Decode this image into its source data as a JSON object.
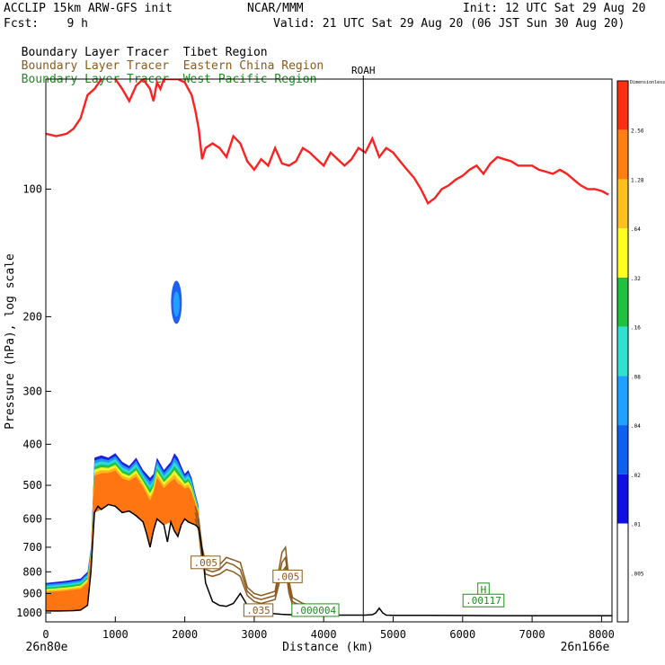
{
  "header": {
    "model": "ACCLIP 15km ARW-GFS init",
    "center": "NCAR/MMM",
    "init": "Init: 12 UTC Sat 29 Aug 20",
    "fcst": "Fcst:    9 h",
    "valid": "Valid: 21 UTC Sat 29 Aug 20 (06 JST Sun 30 Aug 20)"
  },
  "legend": [
    {
      "label": "Boundary Layer Tracer",
      "region": "Tibet Region",
      "color": "#000000"
    },
    {
      "label": "Boundary Layer Tracer",
      "region": "Eastern China Region",
      "color": "#8b5a1e"
    },
    {
      "label": "Boundary Layer Tracer",
      "region": "West Pacific Region",
      "color": "#1e8c1e"
    }
  ],
  "colorbar": {
    "title": "Dimensionless",
    "levels": [
      ".005",
      ".01",
      ".02",
      ".04",
      ".08",
      ".16",
      ".32",
      ".64",
      "1.28",
      "2.56"
    ],
    "colors": [
      "#ffffff",
      "#ffffff",
      "#1010e0",
      "#1060f0",
      "#20a0ff",
      "#30e0d0",
      "#20c040",
      "#ffff20",
      "#ffc020",
      "#ff8010",
      "#ff3010"
    ]
  },
  "chart_data": {
    "type": "area",
    "ylabel": "Pressure (hPa), log scale",
    "xlabel": "Distance (km)",
    "y_scale": "log",
    "ylim": [
      1050,
      55
    ],
    "xlim": [
      0,
      8150
    ],
    "x_ticks": [
      "0",
      "1000",
      "2000",
      "3000",
      "4000",
      "5000",
      "6000",
      "7000",
      "8000"
    ],
    "y_ticks": [
      "100",
      "200",
      "300",
      "400",
      "500",
      "600",
      "700",
      "800",
      "900",
      "1000"
    ],
    "left_end_label": "26n80e",
    "right_end_label": "26n166e",
    "station": {
      "name": "ROAH",
      "x": 4570
    },
    "tropopause": {
      "color": "#ff2020",
      "x": [
        0,
        150,
        300,
        400,
        450,
        500,
        600,
        700,
        800,
        900,
        1000,
        1100,
        1200,
        1300,
        1400,
        1500,
        1550,
        1600,
        1650,
        1700,
        1800,
        1900,
        2000,
        2050,
        2100,
        2150,
        2200,
        2250,
        2300,
        2400,
        2500,
        2600,
        2700,
        2800,
        2900,
        3000,
        3100,
        3200,
        3300,
        3400,
        3500,
        3600,
        3700,
        3800,
        3900,
        4000,
        4100,
        4200,
        4300,
        4400,
        4500,
        4600,
        4700,
        4800,
        4900,
        5000,
        5100,
        5200,
        5300,
        5400,
        5500,
        5600,
        5700,
        5800,
        5900,
        6000,
        6100,
        6200,
        6300,
        6400,
        6500,
        6600,
        6700,
        6800,
        6900,
        7000,
        7100,
        7200,
        7300,
        7400,
        7500,
        7600,
        7700,
        7800,
        7900,
        8000,
        8100
      ],
      "y": [
        74,
        75,
        74,
        72,
        70,
        68,
        60,
        58,
        55,
        52,
        55,
        58,
        62,
        57,
        55,
        58,
        62,
        56,
        58,
        55,
        55,
        55,
        56,
        58,
        60,
        65,
        72,
        85,
        80,
        78,
        80,
        84,
        75,
        78,
        86,
        90,
        85,
        88,
        80,
        87,
        88,
        86,
        80,
        82,
        85,
        88,
        82,
        85,
        88,
        85,
        80,
        82,
        76,
        84,
        80,
        82,
        86,
        90,
        94,
        100,
        108,
        105,
        100,
        98,
        95,
        93,
        90,
        88,
        92,
        87,
        84,
        85,
        86,
        88,
        88,
        88,
        90,
        91,
        92,
        90,
        92,
        95,
        98,
        100,
        100,
        101,
        103
      ],
      "spikes": [
        {
          "x": 1500,
          "y": 55
        },
        {
          "x": 1980,
          "y": 55
        },
        {
          "x": 2050,
          "y": 55
        }
      ]
    },
    "terrain": {
      "color": "#000000",
      "x": [
        0,
        200,
        400,
        500,
        600,
        650,
        700,
        750,
        800,
        900,
        1000,
        1100,
        1200,
        1300,
        1400,
        1450,
        1500,
        1550,
        1600,
        1700,
        1750,
        1800,
        1850,
        1900,
        1950,
        2000,
        2050,
        2100,
        2150,
        2200,
        2250,
        2300,
        2400,
        2500,
        2600,
        2700,
        2800,
        2900,
        3000,
        3100,
        3200,
        3300,
        3400,
        3500,
        3600,
        3700,
        3800,
        3900,
        4000,
        4100,
        4200,
        4300,
        4400,
        4500,
        4600,
        4700,
        4750,
        4800,
        4850,
        4900,
        5000,
        5500,
        6000,
        6500,
        7000,
        7500,
        8000,
        8150
      ],
      "y": [
        990,
        990,
        988,
        985,
        960,
        800,
        580,
        560,
        570,
        555,
        560,
        580,
        575,
        590,
        610,
        650,
        700,
        640,
        600,
        620,
        680,
        610,
        640,
        660,
        620,
        600,
        610,
        615,
        620,
        630,
        710,
        850,
        940,
        960,
        965,
        950,
        900,
        960,
        985,
        990,
        1000,
        1005,
        1008,
        1010,
        1010,
        1008,
        1010,
        1010,
        1010,
        1012,
        1012,
        1012,
        1012,
        1012,
        1012,
        1010,
        1000,
        975,
        1000,
        1012,
        1013,
        1013,
        1014,
        1015,
        1015,
        1015,
        1015,
        1015
      ]
    },
    "tibet_tracer_top": {
      "x": [
        0,
        300,
        500,
        600,
        650,
        700,
        800,
        900,
        1000,
        1100,
        1200,
        1300,
        1400,
        1500,
        1550,
        1600,
        1700,
        1800,
        1850,
        1900,
        1950,
        2000,
        2050,
        2100,
        2150,
        2200
      ],
      "y": [
        850,
        840,
        830,
        800,
        700,
        430,
        425,
        430,
        420,
        440,
        450,
        430,
        460,
        480,
        470,
        430,
        460,
        440,
        420,
        430,
        450,
        470,
        460,
        480,
        520,
        560
      ]
    },
    "eastern_china_contours": {
      "x": [
        2150,
        2200,
        2250,
        2300,
        2400,
        2500,
        2600,
        2700,
        2800,
        2900,
        3000,
        3100,
        3200,
        3300,
        3400,
        3450,
        3500,
        3550,
        3600,
        3700,
        3800,
        3900,
        4000
      ],
      "y_levels": [
        [
          560,
          600,
          700,
          760,
          780,
          770,
          740,
          750,
          760,
          870,
          900,
          910,
          900,
          890,
          720,
          700,
          840,
          920,
          930,
          950,
          960,
          970,
          975
        ],
        [
          580,
          620,
          730,
          790,
          800,
          790,
          760,
          770,
          790,
          890,
          920,
          930,
          920,
          910,
          760,
          740,
          870,
          940,
          950,
          960,
          970,
          980,
          985
        ],
        [
          600,
          640,
          760,
          810,
          820,
          810,
          790,
          800,
          820,
          910,
          940,
          950,
          940,
          930,
          800,
          780,
          900,
          955,
          960,
          970,
          980,
          990,
          995
        ]
      ]
    },
    "labels": [
      {
        "text": ".005",
        "x": 2300,
        "y": 760,
        "color": "#8b5a1e"
      },
      {
        "text": ".005",
        "x": 3480,
        "y": 820,
        "color": "#8b5a1e"
      },
      {
        "text": ".035",
        "x": 3060,
        "y": 985,
        "color": "#8b5a1e"
      },
      {
        "text": ".000004",
        "x": 3880,
        "y": 985,
        "color": "#1e8c1e"
      },
      {
        "text": "H",
        "x": 6300,
        "y": 880,
        "color": "#1e8c1e"
      },
      {
        "text": ".00117",
        "x": 6300,
        "y": 935,
        "color": "#1e8c1e"
      }
    ],
    "blob": {
      "x": 1880,
      "y": 185,
      "color": "#20a0ff"
    }
  }
}
